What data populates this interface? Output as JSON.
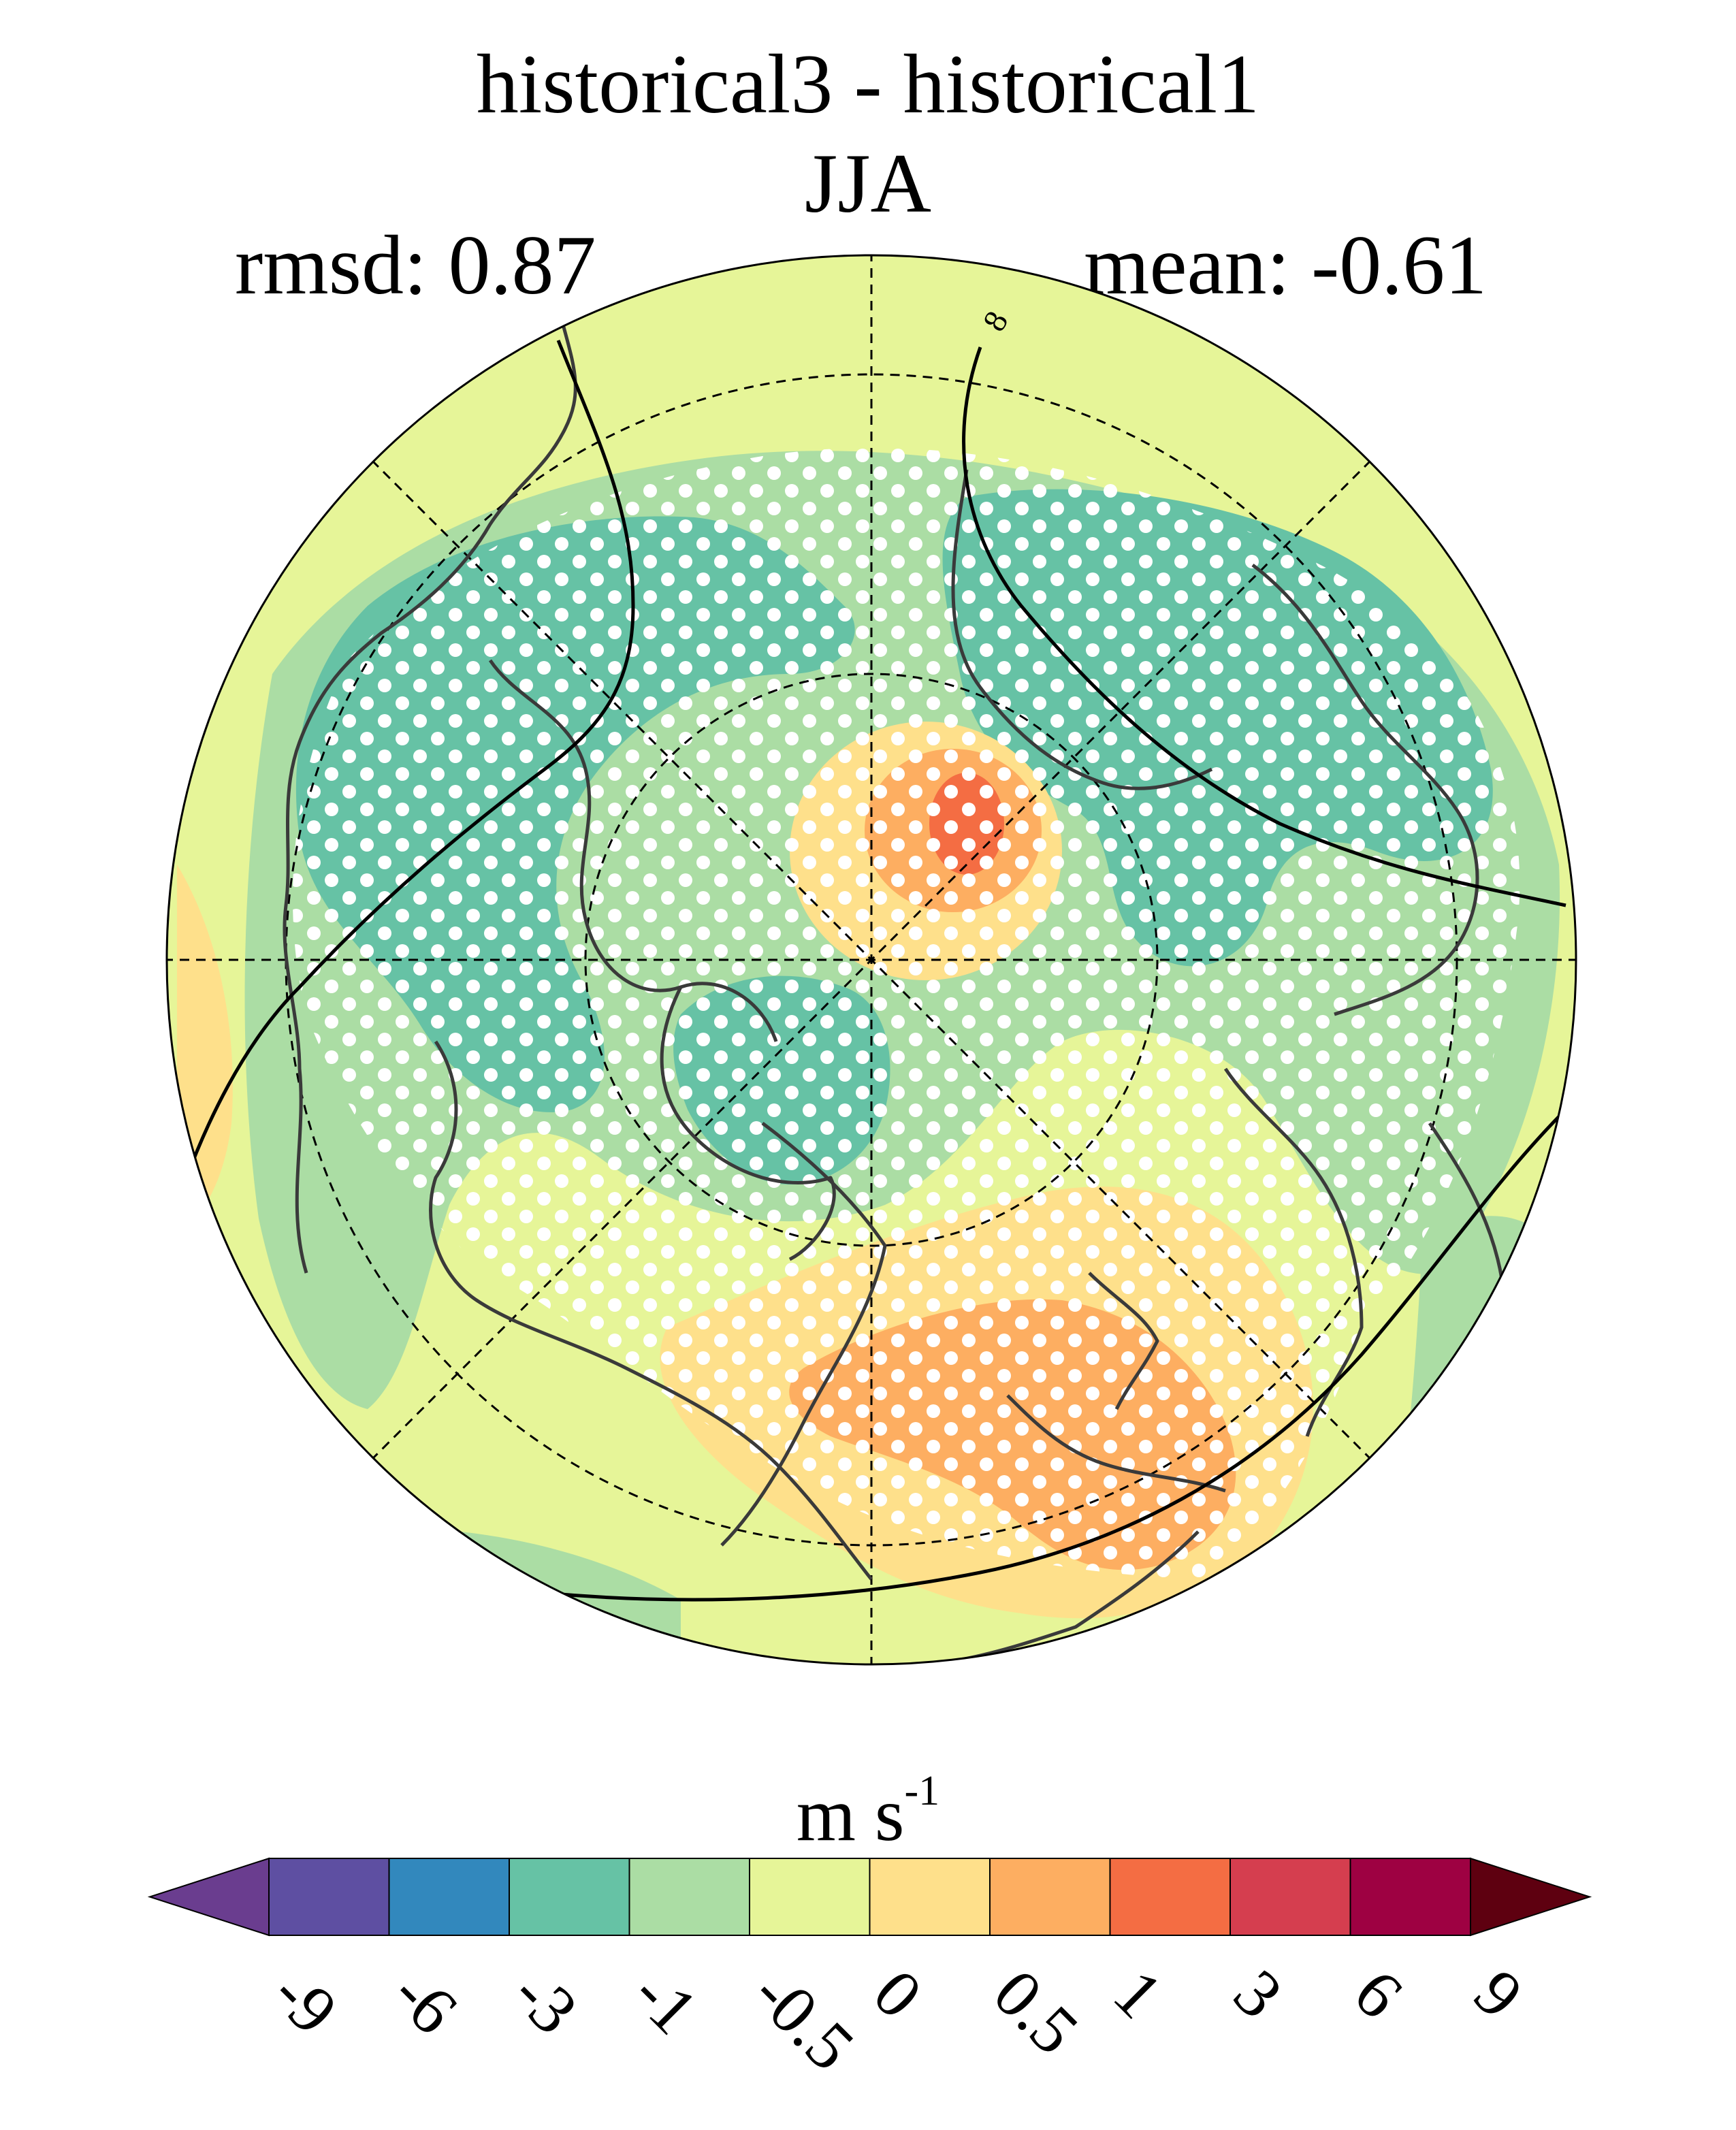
{
  "title": "historical3 - historical1",
  "season": "JJA",
  "stats": {
    "rmsd_label": "rmsd: 0.87",
    "mean_label": "mean: -0.61",
    "rmsd": 0.87,
    "mean": -0.61
  },
  "colorbar": {
    "units_base": "m s",
    "units_exp": "-1",
    "ticks": [
      "-9",
      "-6",
      "-3",
      "-1",
      "-0.5",
      "0",
      "0.5",
      "1",
      "3",
      "6",
      "9"
    ],
    "colors": [
      "#5e4fa2",
      "#3288bd",
      "#66c2a5",
      "#abdda4",
      "#e6f598",
      "#fee08b",
      "#fdae61",
      "#f46d43",
      "#d53e4f",
      "#9e0142"
    ],
    "under_color": "#6a3d8f",
    "over_color": "#5e0010"
  },
  "map": {
    "projection": "north polar stereographic",
    "field": "historical3 - historical1 difference",
    "stippling": "white dots mark significant differences",
    "contour_label": "8"
  },
  "icons": [
    "coastline-icon",
    "stipple-dot-icon"
  ]
}
